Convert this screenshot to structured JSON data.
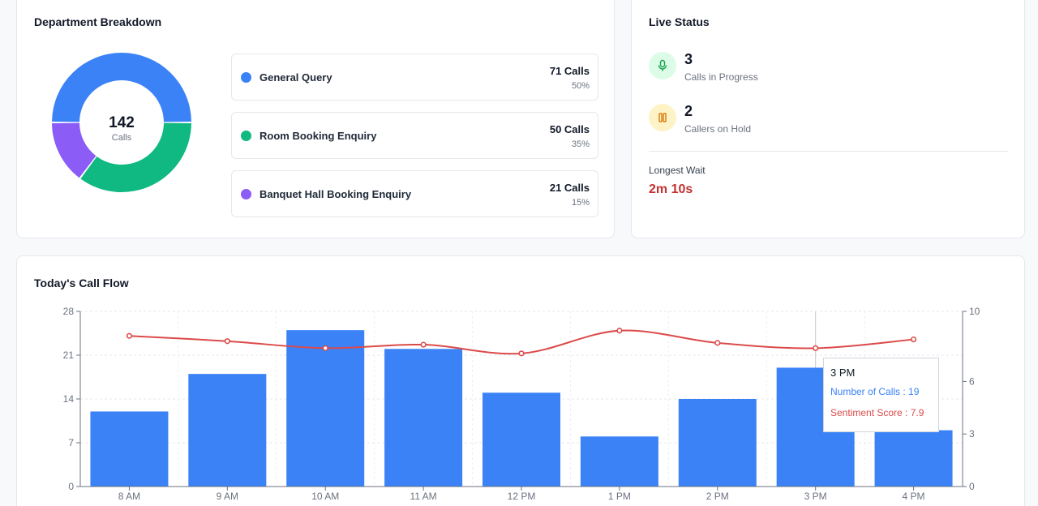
{
  "department": {
    "title": "Department Breakdown",
    "total": "142",
    "total_label": "Calls",
    "items": [
      {
        "name": "General Query",
        "calls": "71 Calls",
        "pct": "50%",
        "value": 71,
        "color": "#3b82f6"
      },
      {
        "name": "Room Booking Enquiry",
        "calls": "50 Calls",
        "pct": "35%",
        "value": 50,
        "color": "#10b981"
      },
      {
        "name": "Banquet Hall Booking Enquiry",
        "calls": "21 Calls",
        "pct": "15%",
        "value": 21,
        "color": "#8b5cf6"
      }
    ]
  },
  "live": {
    "title": "Live Status",
    "in_progress_count": "3",
    "in_progress_label": "Calls in Progress",
    "on_hold_count": "2",
    "on_hold_label": "Callers on Hold",
    "longest_wait_label": "Longest Wait",
    "longest_wait_value": "2m 10s"
  },
  "flow": {
    "title": "Today's Call Flow",
    "tooltip": {
      "title": "3 PM",
      "calls_line": "Number of Calls : 19",
      "sentiment_line": "Sentiment Score : 7.9"
    }
  },
  "chart_data": {
    "type": "bar",
    "categories": [
      "8 AM",
      "9 AM",
      "10 AM",
      "11 AM",
      "12 PM",
      "1 PM",
      "2 PM",
      "3 PM",
      "4 PM"
    ],
    "series": [
      {
        "name": "Number of Calls",
        "type": "bar",
        "axis": "left",
        "values": [
          12,
          18,
          25,
          22,
          15,
          8,
          14,
          19,
          9
        ],
        "color": "#3b82f6"
      },
      {
        "name": "Sentiment Score",
        "type": "line",
        "axis": "right",
        "values": [
          8.6,
          8.3,
          7.9,
          8.1,
          7.6,
          8.9,
          8.2,
          7.9,
          8.4
        ],
        "color": "#dc4a4a"
      }
    ],
    "left_axis": {
      "ylim": [
        0,
        28
      ],
      "ticks": [
        0,
        7,
        14,
        21,
        28
      ]
    },
    "right_axis": {
      "ylim": [
        0,
        10
      ],
      "ticks": [
        "0",
        "3",
        "6",
        "10"
      ]
    },
    "grid": true
  }
}
